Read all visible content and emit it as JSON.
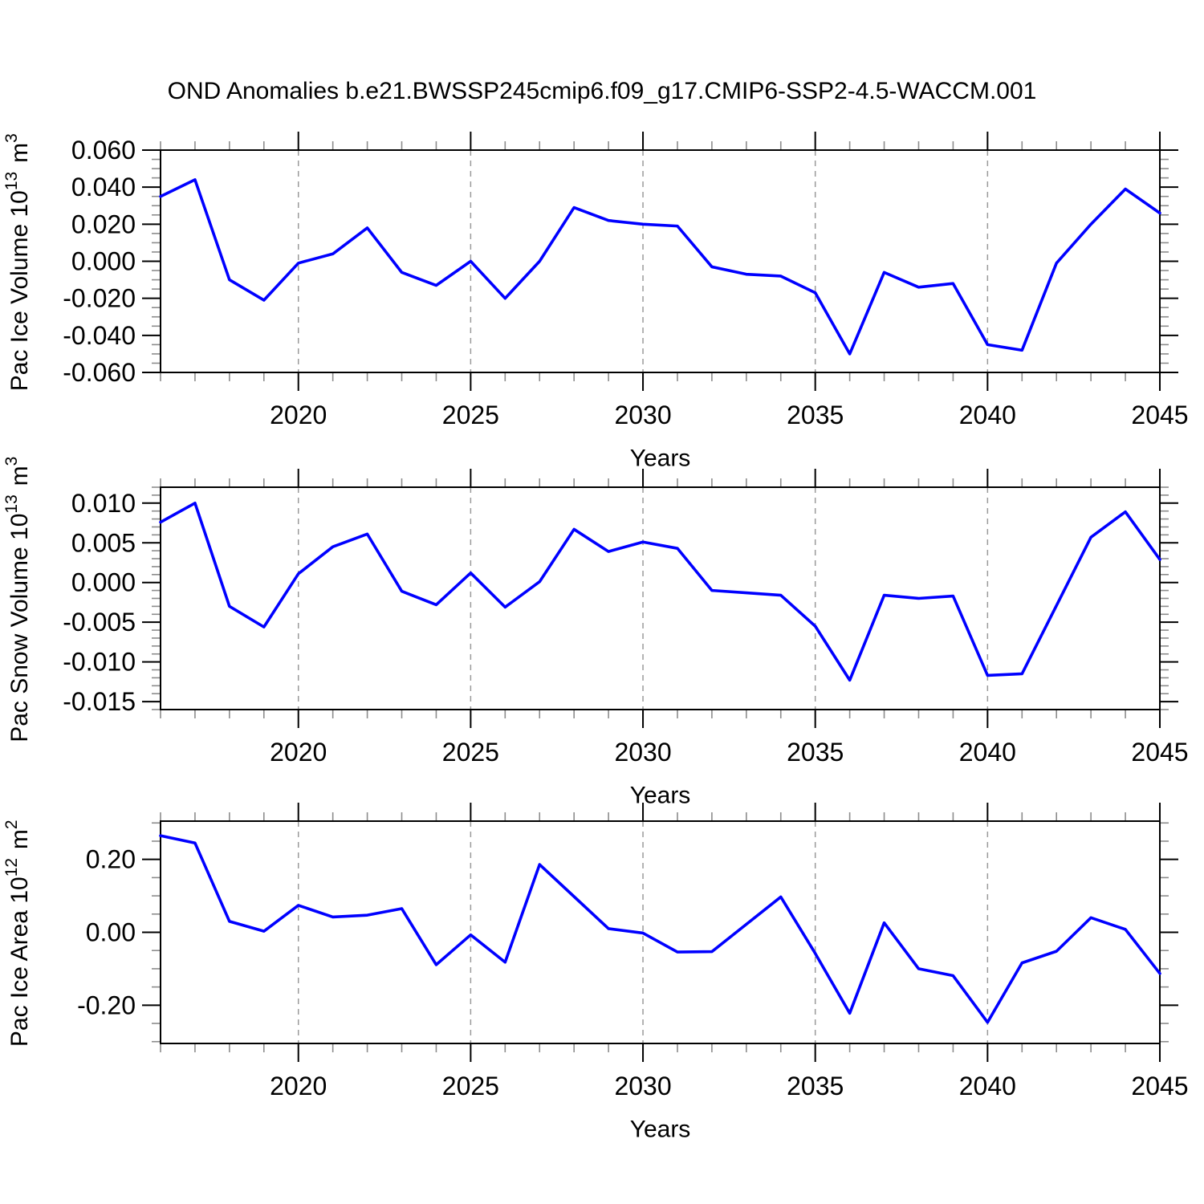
{
  "title": "OND Anomalies b.e21.BWSSP245cmip6.f09_g17.CMIP6-SSP2-4.5-WACCM.001",
  "colors": {
    "line": "#0000ff",
    "axis": "#000000",
    "major_tick": "#000000",
    "minor_tick": "#8c8c8c",
    "grid": "#9a9a9a",
    "text": "#000000",
    "background": "#ffffff"
  },
  "chart_data": [
    {
      "type": "line",
      "xlabel": "Years",
      "ylabel_parts": [
        {
          "t": "Pac Ice Volume 10"
        },
        {
          "s": "13"
        },
        {
          "t": " m"
        },
        {
          "s": "3"
        }
      ],
      "x": [
        2016,
        2017,
        2018,
        2019,
        2020,
        2021,
        2022,
        2023,
        2024,
        2025,
        2026,
        2027,
        2028,
        2029,
        2030,
        2031,
        2032,
        2033,
        2034,
        2035,
        2036,
        2037,
        2038,
        2039,
        2040,
        2041,
        2042,
        2043,
        2044,
        2045
      ],
      "values": [
        0.035,
        0.044,
        -0.01,
        -0.021,
        -0.001,
        0.004,
        0.018,
        -0.006,
        -0.013,
        0.0,
        -0.02,
        0.0,
        0.029,
        0.022,
        0.02,
        0.019,
        -0.003,
        -0.007,
        -0.008,
        -0.017,
        -0.05,
        -0.006,
        -0.014,
        -0.012,
        -0.045,
        -0.048,
        -0.001,
        0.02,
        0.039,
        0.026
      ],
      "xlim": [
        2016,
        2045
      ],
      "ylim": [
        -0.06,
        0.06
      ],
      "ytick_values": [
        0.06,
        0.04,
        0.02,
        0.0,
        -0.02,
        -0.04,
        -0.06
      ],
      "ytick_labels": [
        "0.060",
        "0.040",
        "0.020",
        "0.000",
        "-0.020",
        "-0.040",
        "-0.060"
      ],
      "ytick_minor_step": 0.005,
      "xticks_major": [
        2020,
        2025,
        2030,
        2035,
        2040,
        2045
      ],
      "xtick_labels": [
        "2020",
        "2025",
        "2030",
        "2035",
        "2040",
        "2045"
      ],
      "xtick_minor_step": 1,
      "grid_x": [
        2020,
        2025,
        2030,
        2035,
        2040
      ],
      "grid_on": true,
      "legend": "none"
    },
    {
      "type": "line",
      "xlabel": "Years",
      "ylabel_parts": [
        {
          "t": "Pac Snow Volume 10"
        },
        {
          "s": "13"
        },
        {
          "t": " m"
        },
        {
          "s": "3"
        }
      ],
      "x": [
        2016,
        2017,
        2018,
        2019,
        2020,
        2021,
        2022,
        2023,
        2024,
        2025,
        2026,
        2027,
        2028,
        2029,
        2030,
        2031,
        2032,
        2033,
        2034,
        2035,
        2036,
        2037,
        2038,
        2039,
        2040,
        2041,
        2042,
        2043,
        2044,
        2045
      ],
      "values": [
        0.0076,
        0.01,
        -0.003,
        -0.0056,
        0.0011,
        0.0045,
        0.0061,
        -0.0011,
        -0.0028,
        0.0012,
        -0.0031,
        0.0001,
        0.0067,
        0.0039,
        0.0051,
        0.0043,
        -0.001,
        -0.0013,
        -0.0016,
        -0.0055,
        -0.0123,
        -0.0016,
        -0.002,
        -0.0017,
        -0.0117,
        -0.0115,
        -0.0029,
        0.0057,
        0.0089,
        0.0029
      ],
      "xlim": [
        2016,
        2045
      ],
      "ylim": [
        -0.016,
        0.012
      ],
      "ytick_values": [
        0.01,
        0.005,
        0.0,
        -0.005,
        -0.01,
        -0.015
      ],
      "ytick_labels": [
        "0.010",
        "0.005",
        "0.000",
        "-0.005",
        "-0.010",
        "-0.015"
      ],
      "ytick_minor_step": 0.001,
      "xticks_major": [
        2020,
        2025,
        2030,
        2035,
        2040,
        2045
      ],
      "xtick_labels": [
        "2020",
        "2025",
        "2030",
        "2035",
        "2040",
        "2045"
      ],
      "xtick_minor_step": 1,
      "grid_x": [
        2020,
        2025,
        2030,
        2035,
        2040
      ],
      "grid_on": true,
      "legend": "none"
    },
    {
      "type": "line",
      "xlabel": "Years",
      "ylabel_parts": [
        {
          "t": "Pac Ice Area 10"
        },
        {
          "s": "12"
        },
        {
          "t": " m"
        },
        {
          "s": "2"
        }
      ],
      "x": [
        2016,
        2017,
        2018,
        2019,
        2020,
        2021,
        2022,
        2023,
        2024,
        2025,
        2026,
        2027,
        2028,
        2029,
        2030,
        2031,
        2032,
        2033,
        2034,
        2035,
        2036,
        2037,
        2038,
        2039,
        2040,
        2041,
        2042,
        2043,
        2044,
        2045
      ],
      "values": [
        0.265,
        0.245,
        0.03,
        0.003,
        0.074,
        0.042,
        0.047,
        0.065,
        -0.089,
        -0.007,
        -0.082,
        0.186,
        0.098,
        0.01,
        -0.002,
        -0.054,
        -0.053,
        0.022,
        0.097,
        -0.058,
        -0.222,
        0.026,
        -0.1,
        -0.119,
        -0.247,
        -0.084,
        -0.052,
        0.04,
        0.008,
        -0.113
      ],
      "xlim": [
        2016,
        2045
      ],
      "ylim": [
        -0.305,
        0.305
      ],
      "ytick_values": [
        0.2,
        0.0,
        -0.2
      ],
      "ytick_labels": [
        "0.20",
        "0.00",
        "-0.20"
      ],
      "ytick_minor_step": 0.05,
      "xticks_major": [
        2020,
        2025,
        2030,
        2035,
        2040,
        2045
      ],
      "xtick_labels": [
        "2020",
        "2025",
        "2030",
        "2035",
        "2040",
        "2045"
      ],
      "xtick_minor_step": 1,
      "grid_x": [
        2020,
        2025,
        2030,
        2035,
        2040
      ],
      "grid_on": true,
      "legend": "none"
    }
  ]
}
